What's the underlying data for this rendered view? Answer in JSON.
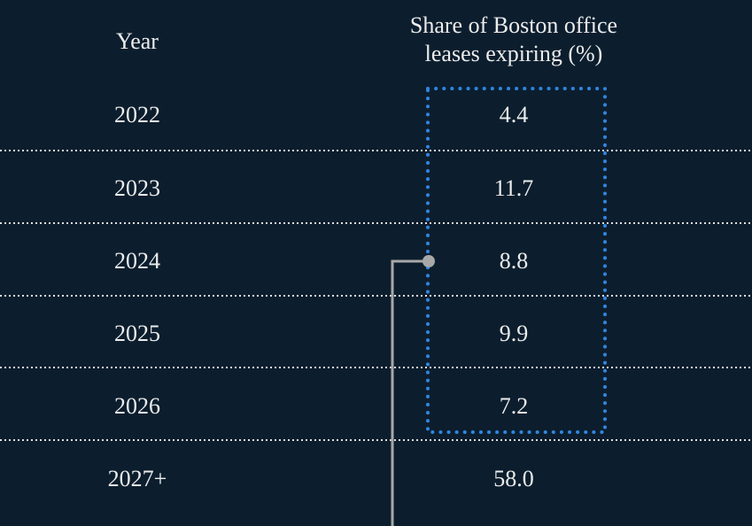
{
  "table": {
    "header": [
      "Year",
      "Share of Boston office leases expiring (%)"
    ],
    "rows": [
      [
        "2022",
        "4.4"
      ],
      [
        "2023",
        "11.7"
      ],
      [
        "2024",
        "8.8"
      ],
      [
        "2025",
        "9.9"
      ],
      [
        "2026",
        "7.2"
      ],
      [
        "2027+",
        "58.0"
      ]
    ]
  }
}
